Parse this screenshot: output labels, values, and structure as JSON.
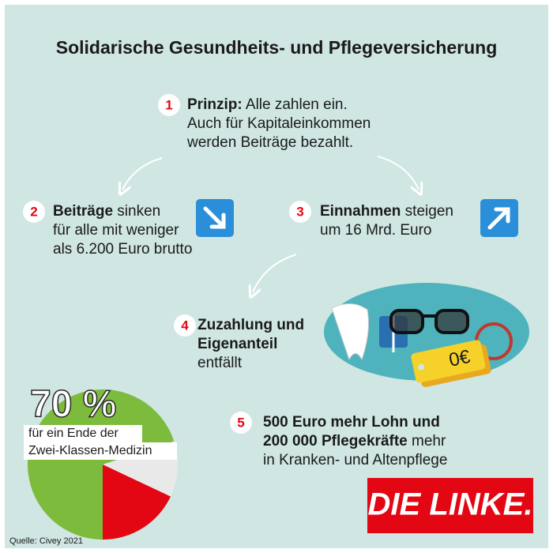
{
  "title": "Solidarische Gesundheits- und Pflegeversicherung",
  "steps": [
    {
      "number": "1",
      "lines": [
        [
          {
            "text": "Prinzip:",
            "bold": true
          },
          {
            "text": " Alle zahlen ein.",
            "bold": false
          }
        ],
        [
          {
            "text": "Auch für Kapitaleinkommen",
            "bold": false
          }
        ],
        [
          {
            "text": "werden Beiträge bezahlt.",
            "bold": false
          }
        ]
      ]
    },
    {
      "number": "2",
      "lines": [
        [
          {
            "text": "Beiträge",
            "bold": true
          },
          {
            "text": " sinken",
            "bold": false
          }
        ],
        [
          {
            "text": "für alle mit weniger",
            "bold": false
          }
        ],
        [
          {
            "text": "als 6.200 Euro brutto",
            "bold": false
          }
        ]
      ]
    },
    {
      "number": "3",
      "lines": [
        [
          {
            "text": "Einnahmen",
            "bold": true
          },
          {
            "text": " steigen",
            "bold": false
          }
        ],
        [
          {
            "text": "um 16 Mrd. Euro",
            "bold": false
          }
        ]
      ]
    },
    {
      "number": "4",
      "lines": [
        [
          {
            "text": "Zuzahlung und",
            "bold": true
          }
        ],
        [
          {
            "text": "Eigenanteil",
            "bold": true
          }
        ],
        [
          {
            "text": "entfällt",
            "bold": false
          }
        ]
      ]
    },
    {
      "number": "5",
      "lines": [
        [
          {
            "text": "500 Euro mehr Lohn und",
            "bold": true
          }
        ],
        [
          {
            "text": "200 000 Pflegekräfte",
            "bold": true
          },
          {
            "text": " mehr",
            "bold": false
          }
        ],
        [
          {
            "text": "in Kranken- und Altenpflege",
            "bold": false
          }
        ]
      ]
    }
  ],
  "price_tag": "0€",
  "pie": {
    "values": [
      70,
      12,
      18
    ],
    "colors": [
      "#7dbb3c",
      "#e9e9e9",
      "#e30613"
    ]
  },
  "pie_label": "70 %",
  "pie_caption": [
    "für ein Ende der",
    "Zwei-Klassen-Medizin"
  ],
  "logo": "DIE LINKE.",
  "source": "Quelle: Civey 2021"
}
